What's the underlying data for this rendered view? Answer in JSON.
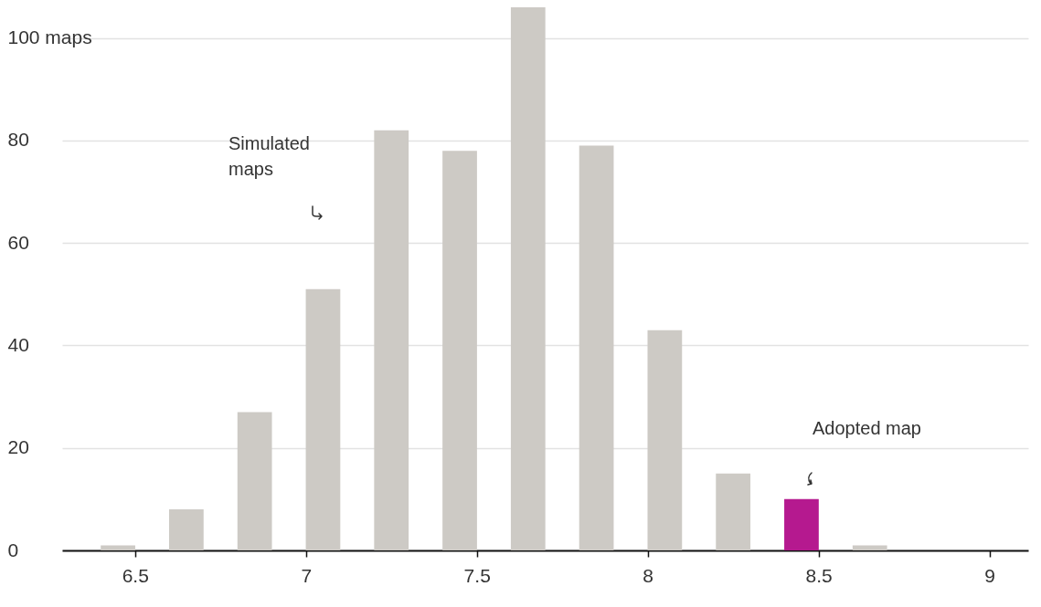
{
  "chart_data": {
    "type": "bar",
    "x": [
      6.45,
      6.65,
      6.85,
      7.05,
      7.25,
      7.45,
      7.65,
      7.85,
      8.05,
      8.25,
      8.45,
      8.65
    ],
    "values": [
      1,
      8,
      27,
      51,
      82,
      78,
      106,
      79,
      43,
      15,
      10,
      1
    ],
    "colors": [
      "#cdcac5",
      "#cdcac5",
      "#cdcac5",
      "#cdcac5",
      "#cdcac5",
      "#cdcac5",
      "#cdcac5",
      "#cdcac5",
      "#cdcac5",
      "#cdcac5",
      "#b5198f",
      "#cdcac5"
    ],
    "xlim": [
      6.3,
      9.1
    ],
    "xticks": [
      6.5,
      7,
      7.5,
      8,
      8.5,
      9
    ],
    "ylim": [
      0,
      106
    ],
    "yticks": [
      0,
      20,
      40,
      60,
      80,
      {
        "value": 100,
        "label": "100 maps"
      }
    ],
    "grid": "y",
    "annotations": [
      "Simulated maps",
      "Adopted map"
    ]
  }
}
